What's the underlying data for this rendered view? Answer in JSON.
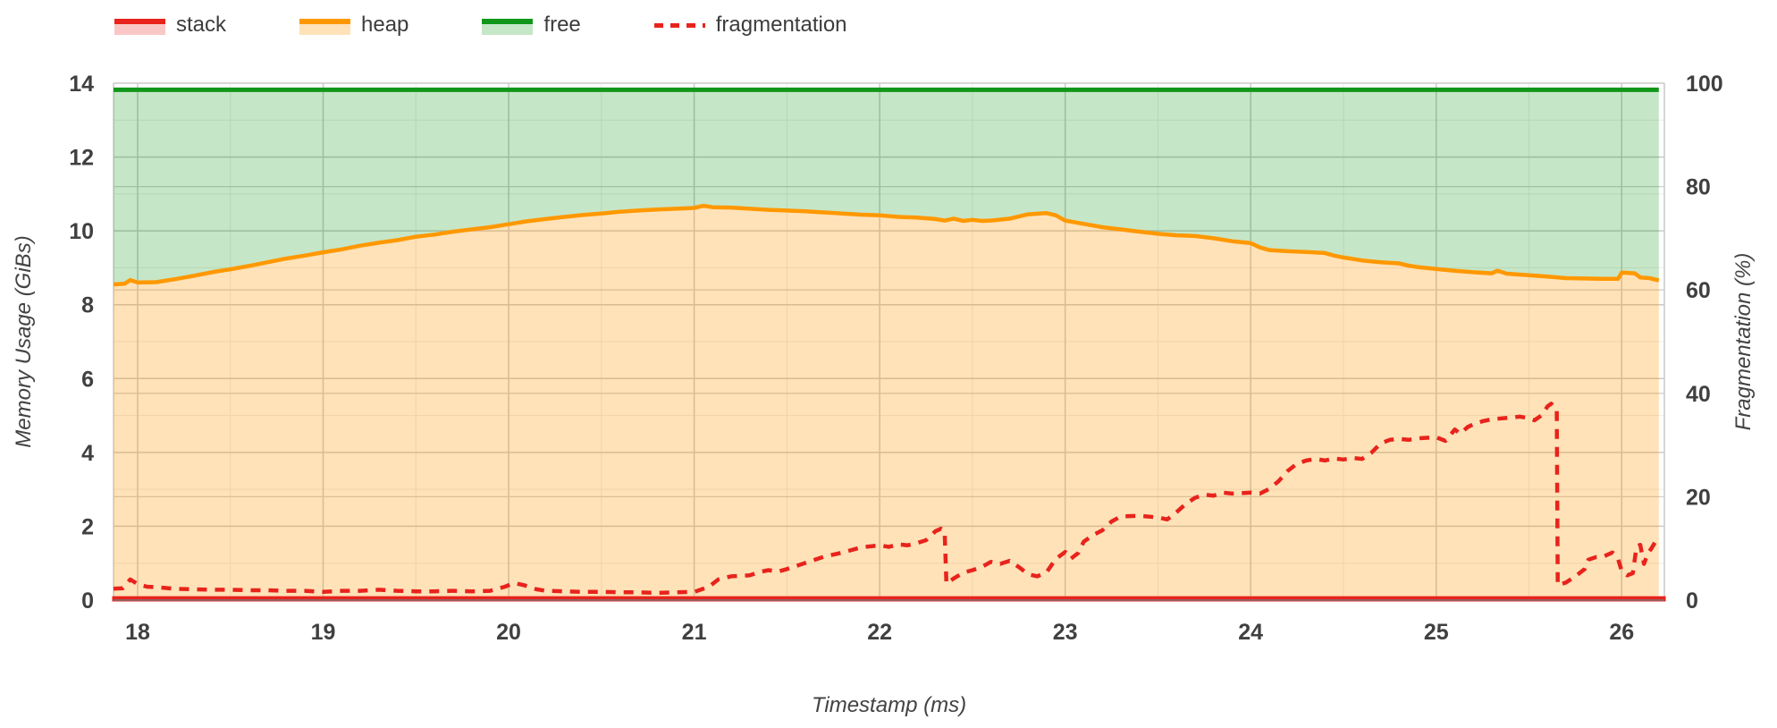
{
  "legend": {
    "items": [
      {
        "label": "stack",
        "type": "area",
        "color": "#e8231c",
        "tint": "rgba(232,35,28,0.25)"
      },
      {
        "label": "heap",
        "type": "area",
        "color": "#ff9800",
        "tint": "rgba(255,152,0,0.28)"
      },
      {
        "label": "free",
        "type": "area",
        "color": "#109618",
        "tint": "rgba(16,150,24,0.24)"
      },
      {
        "label": "fragmentation",
        "type": "dashed-line",
        "color": "#e8231c"
      }
    ]
  },
  "chart_data": {
    "type": "area",
    "title": "",
    "x_axis": {
      "title": "Timestamp (ms)",
      "range": [
        17.87,
        26.23
      ],
      "ticks": [
        18,
        19,
        20,
        21,
        22,
        23,
        24,
        25,
        26
      ],
      "minor_step": 0.5
    },
    "y_left": {
      "title": "Memory Usage (GiBs)",
      "range": [
        0,
        14
      ],
      "ticks": [
        0,
        2,
        4,
        6,
        8,
        10,
        12,
        14
      ],
      "minor_step": 1
    },
    "y_right": {
      "title": "Fragmentation (%)",
      "range": [
        0,
        100
      ],
      "ticks": [
        0,
        20,
        40,
        60,
        80,
        100
      ]
    },
    "grid": {
      "major_color": "#c9c9c9",
      "minor_color": "#ebebe8",
      "right_major_color": "#cfcfcf",
      "baseline_color": "#757575",
      "on": true
    },
    "legend_position": "top-left",
    "total_memory_gib": 13.82,
    "stack_gib": 0.07,
    "series": [
      {
        "name": "stack",
        "axis": "left",
        "style": "area",
        "color": "#e8231c",
        "fill": "rgba(232,35,28,0.25)",
        "constant_value": 0.07
      },
      {
        "name": "heap",
        "axis": "left",
        "style": "area",
        "color": "#ff9800",
        "fill": "rgba(255,152,0,0.28)",
        "points": [
          [
            17.87,
            8.55
          ],
          [
            17.93,
            8.57
          ],
          [
            17.96,
            8.67
          ],
          [
            18.0,
            8.6
          ],
          [
            18.1,
            8.61
          ],
          [
            18.2,
            8.69
          ],
          [
            18.3,
            8.78
          ],
          [
            18.4,
            8.88
          ],
          [
            18.5,
            8.96
          ],
          [
            18.6,
            9.05
          ],
          [
            18.7,
            9.15
          ],
          [
            18.8,
            9.25
          ],
          [
            18.9,
            9.33
          ],
          [
            19.0,
            9.42
          ],
          [
            19.1,
            9.5
          ],
          [
            19.2,
            9.6
          ],
          [
            19.3,
            9.68
          ],
          [
            19.4,
            9.75
          ],
          [
            19.5,
            9.84
          ],
          [
            19.6,
            9.9
          ],
          [
            19.7,
            9.98
          ],
          [
            19.8,
            10.04
          ],
          [
            19.9,
            10.1
          ],
          [
            20.0,
            10.18
          ],
          [
            20.1,
            10.26
          ],
          [
            20.2,
            10.32
          ],
          [
            20.3,
            10.38
          ],
          [
            20.4,
            10.43
          ],
          [
            20.5,
            10.47
          ],
          [
            20.6,
            10.52
          ],
          [
            20.7,
            10.55
          ],
          [
            20.8,
            10.58
          ],
          [
            20.9,
            10.6
          ],
          [
            21.0,
            10.62
          ],
          [
            21.05,
            10.68
          ],
          [
            21.1,
            10.64
          ],
          [
            21.2,
            10.63
          ],
          [
            21.3,
            10.6
          ],
          [
            21.4,
            10.57
          ],
          [
            21.5,
            10.55
          ],
          [
            21.6,
            10.53
          ],
          [
            21.7,
            10.5
          ],
          [
            21.8,
            10.47
          ],
          [
            21.9,
            10.44
          ],
          [
            22.0,
            10.42
          ],
          [
            22.1,
            10.38
          ],
          [
            22.2,
            10.36
          ],
          [
            22.3,
            10.32
          ],
          [
            22.35,
            10.28
          ],
          [
            22.4,
            10.33
          ],
          [
            22.45,
            10.27
          ],
          [
            22.5,
            10.3
          ],
          [
            22.55,
            10.27
          ],
          [
            22.6,
            10.28
          ],
          [
            22.7,
            10.33
          ],
          [
            22.8,
            10.45
          ],
          [
            22.9,
            10.48
          ],
          [
            22.95,
            10.42
          ],
          [
            23.0,
            10.28
          ],
          [
            23.1,
            10.19
          ],
          [
            23.2,
            10.1
          ],
          [
            23.3,
            10.04
          ],
          [
            23.4,
            9.98
          ],
          [
            23.5,
            9.92
          ],
          [
            23.6,
            9.88
          ],
          [
            23.7,
            9.86
          ],
          [
            23.8,
            9.8
          ],
          [
            23.9,
            9.72
          ],
          [
            24.0,
            9.67
          ],
          [
            24.05,
            9.55
          ],
          [
            24.1,
            9.48
          ],
          [
            24.2,
            9.45
          ],
          [
            24.3,
            9.43
          ],
          [
            24.4,
            9.4
          ],
          [
            24.45,
            9.33
          ],
          [
            24.5,
            9.28
          ],
          [
            24.6,
            9.2
          ],
          [
            24.7,
            9.15
          ],
          [
            24.8,
            9.12
          ],
          [
            24.85,
            9.06
          ],
          [
            24.9,
            9.02
          ],
          [
            25.0,
            8.97
          ],
          [
            25.1,
            8.92
          ],
          [
            25.2,
            8.88
          ],
          [
            25.3,
            8.85
          ],
          [
            25.33,
            8.92
          ],
          [
            25.38,
            8.84
          ],
          [
            25.5,
            8.8
          ],
          [
            25.6,
            8.76
          ],
          [
            25.7,
            8.72
          ],
          [
            25.8,
            8.71
          ],
          [
            25.9,
            8.7
          ],
          [
            25.98,
            8.7
          ],
          [
            26.0,
            8.87
          ],
          [
            26.07,
            8.85
          ],
          [
            26.1,
            8.74
          ],
          [
            26.15,
            8.72
          ],
          [
            26.2,
            8.66
          ]
        ]
      },
      {
        "name": "free",
        "axis": "left",
        "style": "area-fills-to-total",
        "color": "#109618",
        "fill": "rgba(16,150,24,0.24)"
      },
      {
        "name": "fragmentation",
        "axis": "right",
        "style": "dashed-line",
        "color": "#e8231c",
        "points": [
          [
            17.87,
            2.2
          ],
          [
            17.92,
            2.3
          ],
          [
            17.96,
            4.0
          ],
          [
            18.0,
            3.1
          ],
          [
            18.05,
            2.6
          ],
          [
            18.1,
            2.5
          ],
          [
            18.2,
            2.2
          ],
          [
            18.3,
            2.1
          ],
          [
            18.4,
            2.0
          ],
          [
            18.5,
            2.0
          ],
          [
            18.6,
            1.9
          ],
          [
            18.7,
            1.9
          ],
          [
            18.8,
            1.8
          ],
          [
            18.9,
            1.8
          ],
          [
            19.0,
            1.6
          ],
          [
            19.1,
            1.8
          ],
          [
            19.2,
            1.8
          ],
          [
            19.3,
            2.0
          ],
          [
            19.4,
            1.8
          ],
          [
            19.5,
            1.7
          ],
          [
            19.6,
            1.7
          ],
          [
            19.7,
            1.8
          ],
          [
            19.8,
            1.7
          ],
          [
            19.9,
            1.8
          ],
          [
            19.98,
            2.6
          ],
          [
            20.03,
            3.3
          ],
          [
            20.08,
            2.9
          ],
          [
            20.15,
            2.1
          ],
          [
            20.2,
            1.8
          ],
          [
            20.3,
            1.7
          ],
          [
            20.4,
            1.6
          ],
          [
            20.5,
            1.6
          ],
          [
            20.6,
            1.5
          ],
          [
            20.7,
            1.5
          ],
          [
            20.8,
            1.4
          ],
          [
            20.9,
            1.5
          ],
          [
            21.0,
            1.6
          ],
          [
            21.08,
            2.6
          ],
          [
            21.13,
            4.0
          ],
          [
            21.2,
            4.6
          ],
          [
            21.3,
            4.8
          ],
          [
            21.35,
            5.4
          ],
          [
            21.4,
            5.8
          ],
          [
            21.45,
            5.5
          ],
          [
            21.5,
            6.0
          ],
          [
            21.6,
            7.2
          ],
          [
            21.7,
            8.4
          ],
          [
            21.8,
            9.2
          ],
          [
            21.9,
            10.2
          ],
          [
            22.0,
            10.6
          ],
          [
            22.05,
            10.3
          ],
          [
            22.1,
            10.8
          ],
          [
            22.15,
            10.6
          ],
          [
            22.2,
            11.0
          ],
          [
            22.25,
            11.6
          ],
          [
            22.3,
            13.3
          ],
          [
            22.33,
            13.8
          ],
          [
            22.35,
            13.2
          ],
          [
            22.36,
            3.2
          ],
          [
            22.4,
            4.2
          ],
          [
            22.45,
            5.3
          ],
          [
            22.5,
            5.8
          ],
          [
            22.55,
            6.4
          ],
          [
            22.6,
            7.4
          ],
          [
            22.65,
            7.0
          ],
          [
            22.7,
            7.6
          ],
          [
            22.75,
            6.4
          ],
          [
            22.8,
            5.0
          ],
          [
            22.85,
            4.6
          ],
          [
            22.9,
            5.4
          ],
          [
            22.95,
            8.0
          ],
          [
            23.0,
            9.3
          ],
          [
            23.03,
            8.0
          ],
          [
            23.07,
            9.1
          ],
          [
            23.1,
            11.3
          ],
          [
            23.15,
            12.6
          ],
          [
            23.2,
            13.5
          ],
          [
            23.25,
            15.2
          ],
          [
            23.3,
            16.2
          ],
          [
            23.4,
            16.3
          ],
          [
            23.5,
            16.0
          ],
          [
            23.55,
            15.6
          ],
          [
            23.6,
            17.0
          ],
          [
            23.65,
            18.6
          ],
          [
            23.7,
            19.8
          ],
          [
            23.75,
            20.4
          ],
          [
            23.8,
            20.2
          ],
          [
            23.85,
            20.8
          ],
          [
            23.9,
            20.6
          ],
          [
            24.0,
            20.8
          ],
          [
            24.05,
            20.6
          ],
          [
            24.1,
            21.5
          ],
          [
            24.15,
            23.0
          ],
          [
            24.2,
            25.0
          ],
          [
            24.25,
            26.4
          ],
          [
            24.3,
            27.0
          ],
          [
            24.35,
            27.3
          ],
          [
            24.4,
            27.0
          ],
          [
            24.45,
            27.4
          ],
          [
            24.5,
            27.2
          ],
          [
            24.55,
            27.5
          ],
          [
            24.6,
            27.3
          ],
          [
            24.65,
            28.5
          ],
          [
            24.7,
            30.3
          ],
          [
            24.75,
            31.0
          ],
          [
            24.8,
            31.2
          ],
          [
            24.85,
            31.0
          ],
          [
            24.9,
            31.3
          ],
          [
            24.95,
            31.4
          ],
          [
            25.0,
            31.5
          ],
          [
            25.05,
            30.8
          ],
          [
            25.1,
            33.0
          ],
          [
            25.13,
            32.2
          ],
          [
            25.17,
            33.5
          ],
          [
            25.2,
            34.0
          ],
          [
            25.25,
            34.6
          ],
          [
            25.3,
            35.0
          ],
          [
            25.4,
            35.3
          ],
          [
            25.45,
            35.5
          ],
          [
            25.5,
            35.2
          ],
          [
            25.53,
            34.8
          ],
          [
            25.57,
            35.8
          ],
          [
            25.6,
            37.5
          ],
          [
            25.62,
            38.0
          ],
          [
            25.64,
            37.2
          ],
          [
            25.65,
            37.0
          ],
          [
            25.655,
            2.9
          ],
          [
            25.7,
            3.4
          ],
          [
            25.75,
            4.6
          ],
          [
            25.8,
            6.0
          ],
          [
            25.82,
            7.8
          ],
          [
            25.86,
            8.3
          ],
          [
            25.9,
            8.4
          ],
          [
            25.95,
            9.2
          ],
          [
            25.98,
            8.0
          ],
          [
            26.0,
            5.6
          ],
          [
            26.03,
            4.8
          ],
          [
            26.06,
            5.2
          ],
          [
            26.08,
            10.4
          ],
          [
            26.1,
            10.7
          ],
          [
            26.12,
            7.0
          ],
          [
            26.14,
            9.0
          ],
          [
            26.16,
            10.0
          ],
          [
            26.18,
            11.2
          ],
          [
            26.2,
            11.5
          ]
        ]
      }
    ]
  }
}
